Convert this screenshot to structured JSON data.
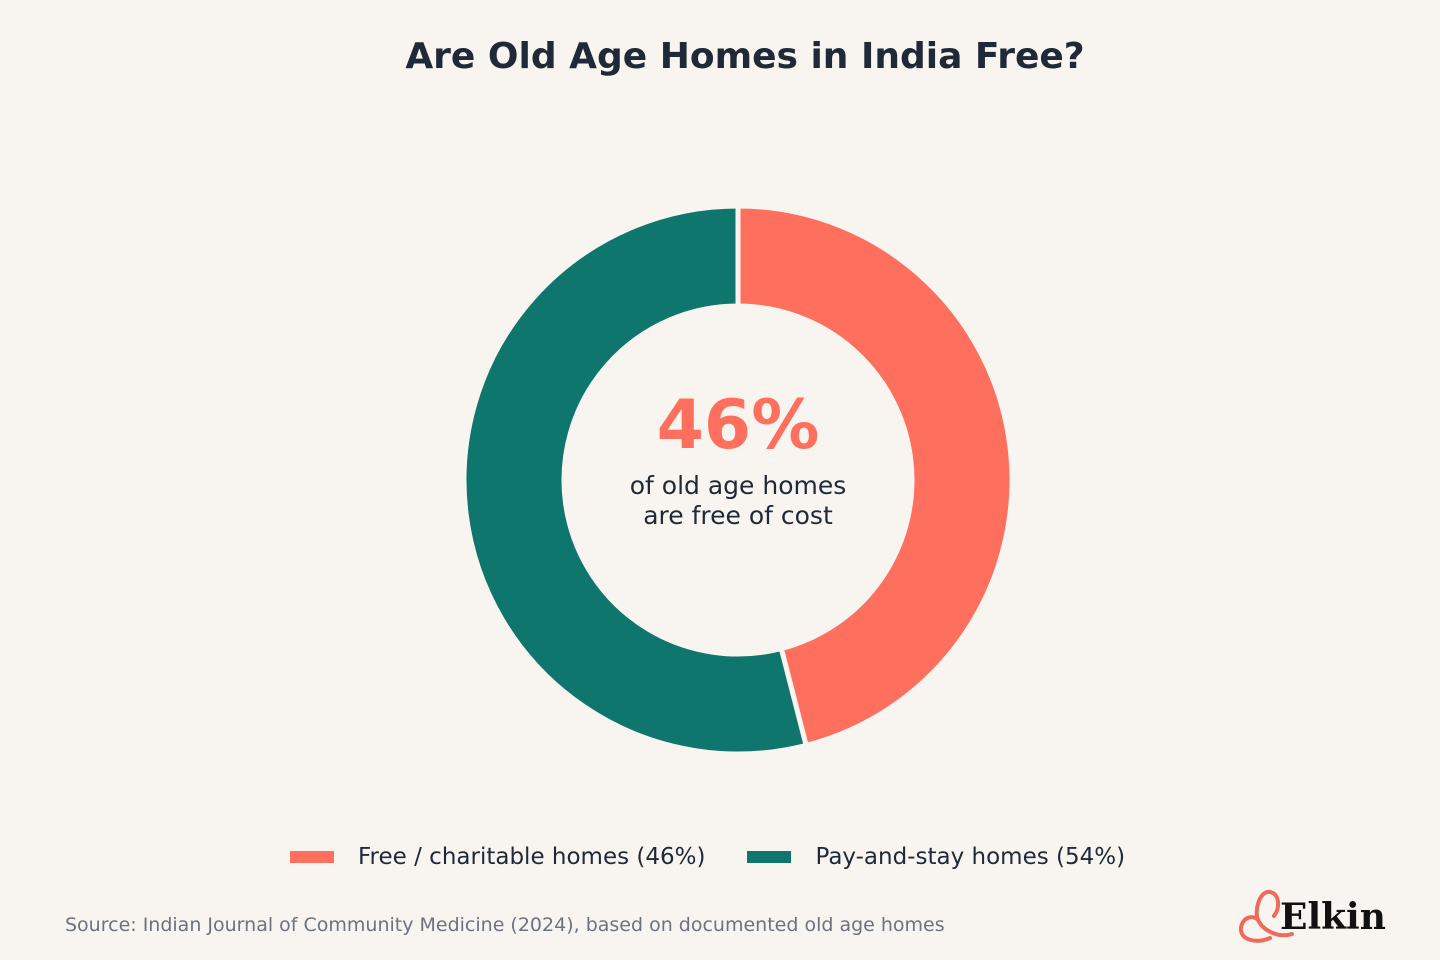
{
  "chart_data": {
    "type": "pie",
    "title": "Are Old Age Homes in India Free?",
    "categories": [
      "Free / charitable homes (46%)",
      "Pay-and-stay homes (54%)"
    ],
    "values": [
      46,
      54
    ],
    "colors": [
      "#ff6f5e",
      "#0f766e"
    ],
    "donut": true,
    "center_value": "46%",
    "center_caption_line1": "of old age homes",
    "center_caption_line2": "are free of cost",
    "legend_position": "bottom"
  },
  "source": "Source: Indian Journal of Community Medicine (2024), based on documented old age homes",
  "brand": {
    "name": "Elkin",
    "icon": "heart-outline-icon",
    "color": "#ef6a5a"
  }
}
